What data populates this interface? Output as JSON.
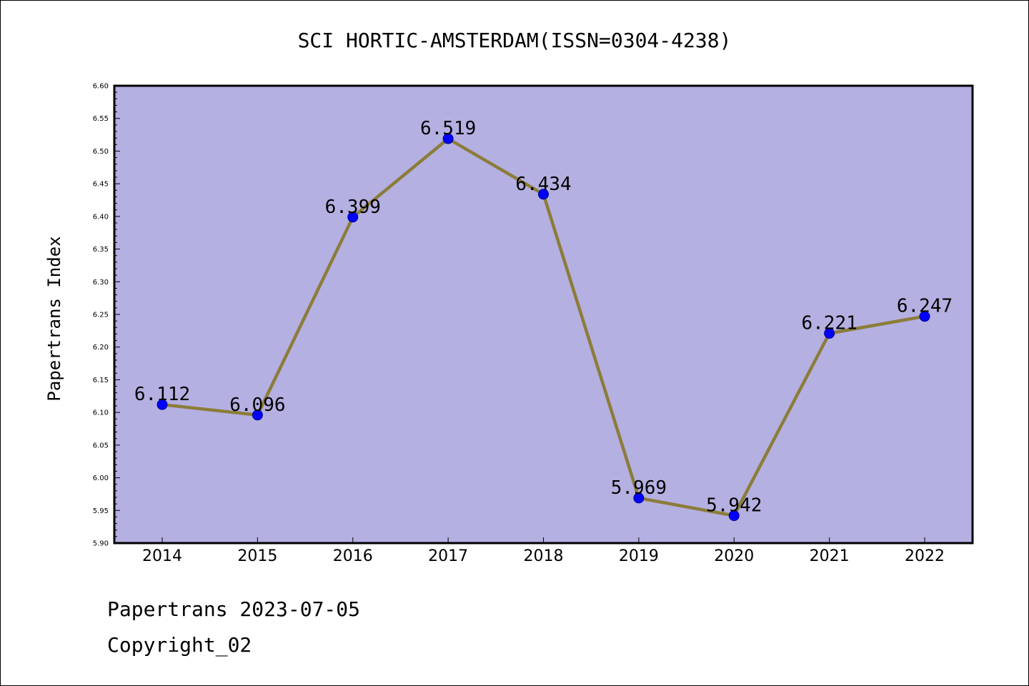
{
  "chart_data": {
    "type": "line",
    "title": "SCI HORTIC-AMSTERDAM(ISSN=0304-4238)",
    "xlabel": "",
    "ylabel": "Papertrans Index",
    "categories": [
      "2014",
      "2015",
      "2016",
      "2017",
      "2018",
      "2019",
      "2020",
      "2021",
      "2022"
    ],
    "values": [
      6.112,
      6.096,
      6.399,
      6.519,
      6.434,
      5.969,
      5.942,
      6.221,
      6.247
    ],
    "data_labels": [
      "6.112",
      "6.096",
      "6.399",
      "6.519",
      "6.434",
      "5.969",
      "5.942",
      "6.221",
      "6.247"
    ],
    "ylim": [
      5.9,
      6.6
    ],
    "yticks": [
      "5.90",
      "5.95",
      "6.00",
      "6.05",
      "6.10",
      "6.15",
      "6.20",
      "6.25",
      "6.30",
      "6.35",
      "6.40",
      "6.45",
      "6.50",
      "6.55",
      "6.60"
    ],
    "grid": false,
    "legend": "none",
    "colors": {
      "plot_background": "#b5b0e2",
      "line": "#8b7d3a",
      "marker": "#0000ff"
    }
  },
  "footer": {
    "line1": "Papertrans 2023-07-05",
    "line2": "Copyright_02"
  }
}
